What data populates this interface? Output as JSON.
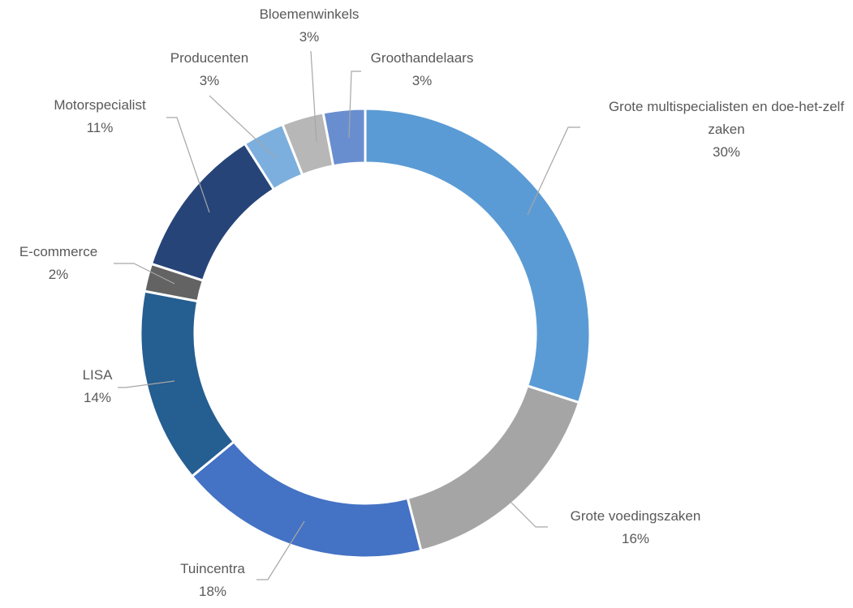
{
  "chart_data": {
    "type": "donut",
    "categories": [
      "Grote multispecialisten en doe-het-zelf zaken",
      "Grote voedingszaken",
      "Tuincentra",
      "LISA",
      "E-commerce",
      "Motorspecialist",
      "Producenten",
      "Bloemenwinkels",
      "Groothandelaars"
    ],
    "values": [
      30,
      16,
      18,
      14,
      2,
      11,
      3,
      3,
      3
    ],
    "value_labels": [
      "30%",
      "16%",
      "18%",
      "14%",
      "2%",
      "11%",
      "3%",
      "3%",
      "3%"
    ],
    "colors": [
      "#5b9bd5",
      "#a5a5a5",
      "#4472c4",
      "#255e91",
      "#636363",
      "#264478",
      "#7cafdd",
      "#b7b7b7",
      "#698ed0"
    ]
  }
}
